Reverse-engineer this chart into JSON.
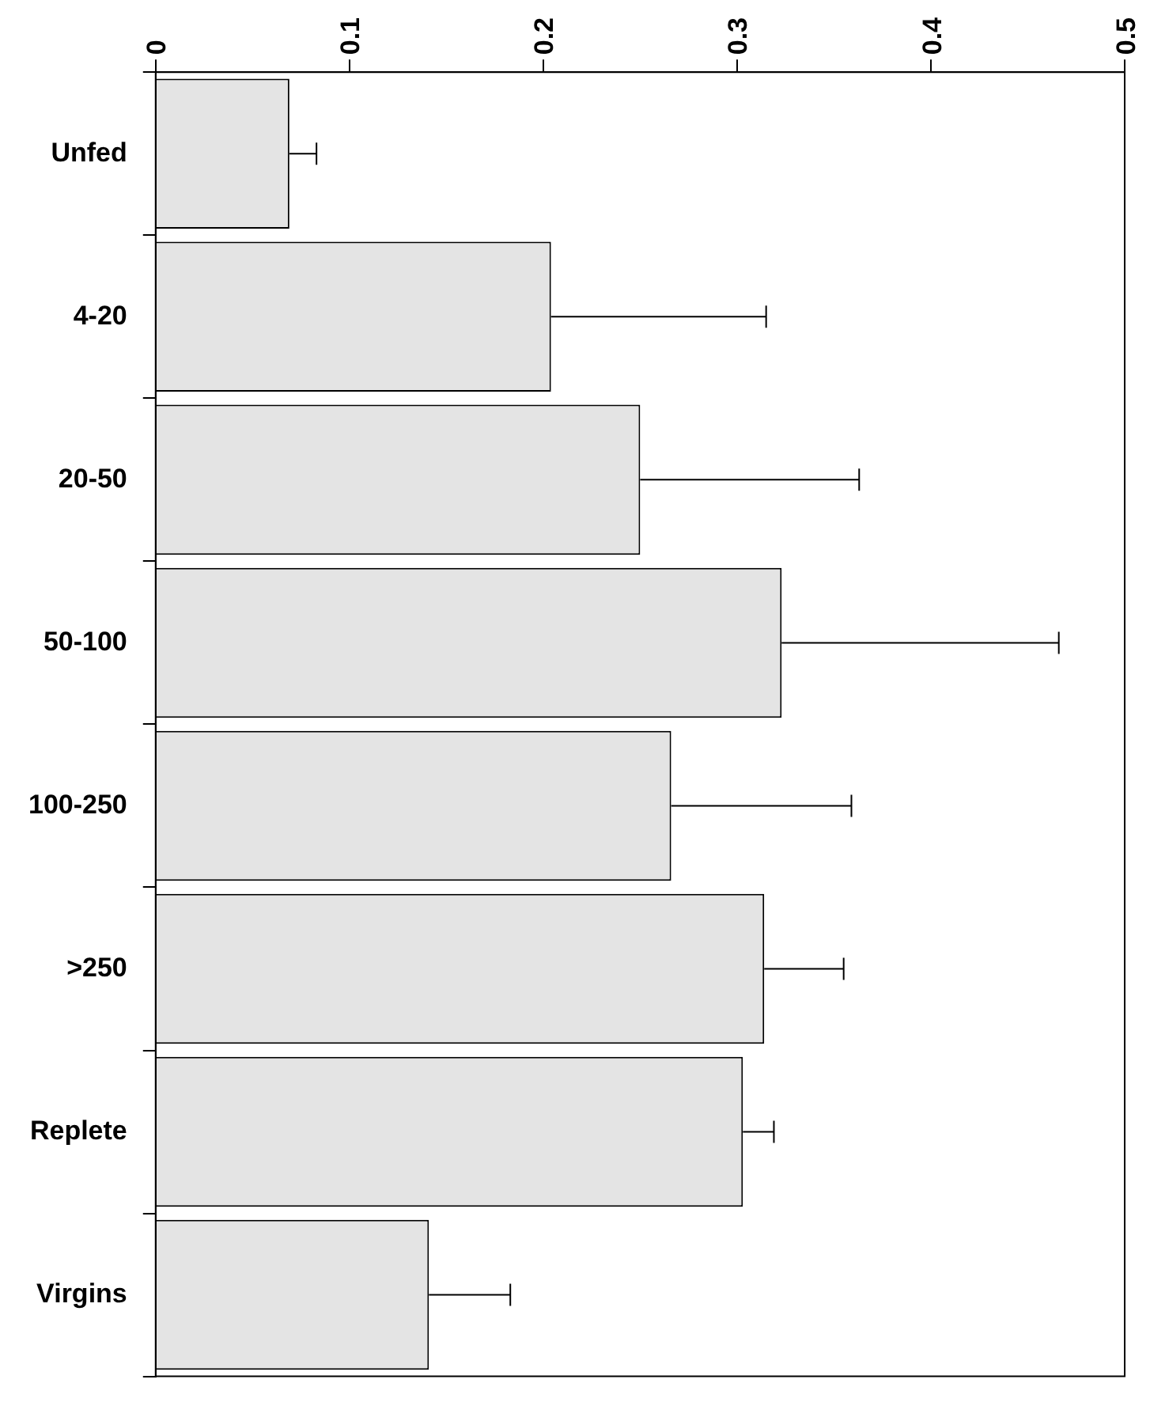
{
  "chart_data": {
    "type": "bar",
    "orientation": "horizontal",
    "categories": [
      "Unfed",
      "4-20",
      "20-50",
      "50-100",
      "100-250",
      ">250",
      "Replete",
      "Virgins"
    ],
    "values": [
      0.069,
      0.204,
      0.25,
      0.323,
      0.266,
      0.314,
      0.303,
      0.141
    ],
    "errors": [
      [
        0.069,
        0.083
      ],
      [
        0.204,
        0.315
      ],
      [
        0.25,
        0.363
      ],
      [
        0.323,
        0.466
      ],
      [
        0.266,
        0.359
      ],
      [
        0.314,
        0.355
      ],
      [
        0.303,
        0.319
      ],
      [
        0.141,
        0.183
      ]
    ],
    "color": "#e4e4e4",
    "xlim": [
      0,
      0.5
    ],
    "xticks": [
      0,
      0.1,
      0.2,
      0.3,
      0.4,
      0.5
    ],
    "grid": false,
    "legend": false
  }
}
